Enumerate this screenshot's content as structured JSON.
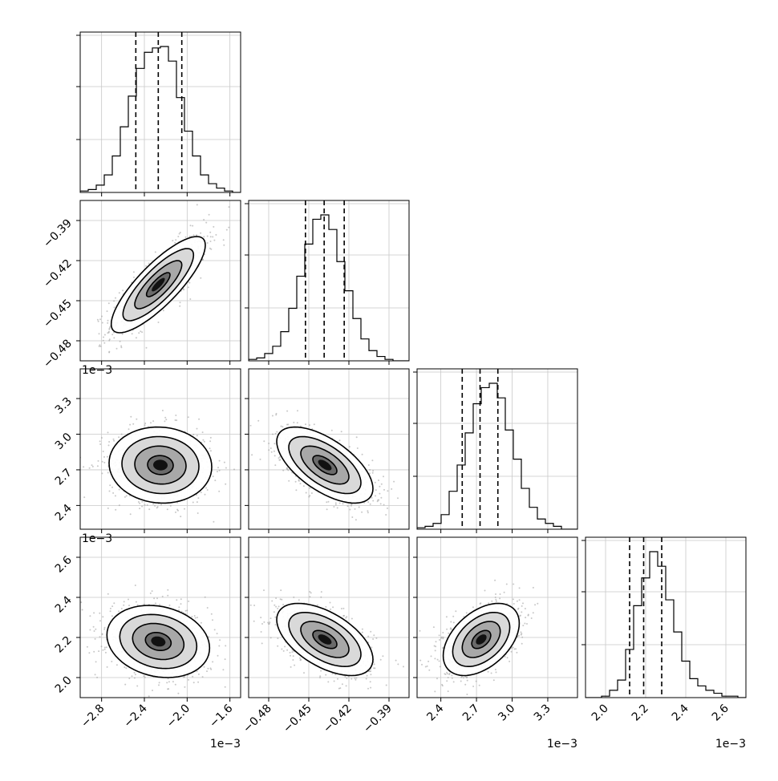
{
  "chart_data": {
    "type": "corner",
    "scale_label": "1e−3",
    "parameters": [
      {
        "range": [
          -3.0,
          -1.5
        ],
        "ticks": [
          -2.8,
          -2.4,
          -2.0,
          -1.6
        ],
        "tick_labels": [
          "−2.8",
          "−2.4",
          "−2.0",
          "−1.6"
        ]
      },
      {
        "range": [
          -0.495,
          -0.375
        ],
        "ticks": [
          -0.48,
          -0.45,
          -0.42,
          -0.39
        ],
        "tick_labels": [
          "−0.48",
          "−0.45",
          "−0.42",
          "−0.39"
        ]
      },
      {
        "range": [
          2.2,
          3.55
        ],
        "ticks": [
          2.4,
          2.7,
          3.0,
          3.3
        ],
        "tick_labels": [
          "2.4",
          "2.7",
          "3.0",
          "3.3"
        ]
      },
      {
        "range": [
          1.9,
          2.7
        ],
        "ticks": [
          2.0,
          2.2,
          2.4,
          2.6
        ],
        "tick_labels": [
          "2.0",
          "2.2",
          "2.4",
          "2.6"
        ]
      }
    ],
    "histograms": [
      {
        "param": 0,
        "quantiles": [
          -2.48,
          -2.27,
          -2.05
        ],
        "bin_edges_range": [
          -3.0,
          -1.5
        ],
        "counts": [
          1,
          2,
          5,
          12,
          25,
          45,
          66,
          85,
          96,
          99,
          100,
          90,
          65,
          42,
          25,
          12,
          6,
          3,
          1,
          0
        ]
      },
      {
        "param": 1,
        "quantiles": [
          -0.4525,
          -0.4385,
          -0.4235
        ],
        "bin_edges_range": [
          -0.495,
          -0.375
        ],
        "counts": [
          1,
          2,
          5,
          10,
          20,
          36,
          58,
          80,
          97,
          100,
          90,
          68,
          48,
          29,
          15,
          7,
          3,
          1,
          0,
          0
        ]
      },
      {
        "param": 2,
        "quantiles": [
          2.58,
          2.73,
          2.88
        ],
        "bin_edges_range": [
          2.2,
          3.55
        ],
        "counts": [
          1,
          2,
          4,
          10,
          26,
          44,
          66,
          86,
          97,
          100,
          90,
          68,
          48,
          28,
          15,
          7,
          4,
          2,
          0,
          0
        ]
      },
      {
        "param": 3,
        "quantiles": [
          2.12,
          2.19,
          2.28
        ],
        "bin_edges_range": [
          1.9,
          2.7
        ],
        "counts": [
          0,
          0,
          1,
          5,
          12,
          33,
          63,
          82,
          100,
          90,
          67,
          45,
          25,
          13,
          8,
          5,
          3,
          1,
          1,
          0
        ]
      }
    ],
    "pairs": [
      {
        "x": 0,
        "y": 1,
        "mean": [
          -2.27,
          -0.438
        ],
        "sd": [
          0.22,
          0.018
        ],
        "rho": 0.82
      },
      {
        "x": 0,
        "y": 2,
        "mean": [
          -2.25,
          2.74
        ],
        "sd": [
          0.24,
          0.16
        ],
        "rho": -0.05
      },
      {
        "x": 1,
        "y": 2,
        "mean": [
          -0.438,
          2.74
        ],
        "sd": [
          0.018,
          0.16
        ],
        "rho": -0.62
      },
      {
        "x": 0,
        "y": 3,
        "mean": [
          -2.27,
          2.18
        ],
        "sd": [
          0.24,
          0.09
        ],
        "rho": -0.18
      },
      {
        "x": 1,
        "y": 3,
        "mean": [
          -0.438,
          2.19
        ],
        "sd": [
          0.018,
          0.09
        ],
        "rho": -0.55
      },
      {
        "x": 2,
        "y": 3,
        "mean": [
          2.74,
          2.19
        ],
        "sd": [
          0.16,
          0.09
        ],
        "rho": 0.45
      }
    ],
    "grid": true,
    "contour_levels_sigma": [
      0.5,
      1.0,
      1.5,
      2.0
    ]
  }
}
